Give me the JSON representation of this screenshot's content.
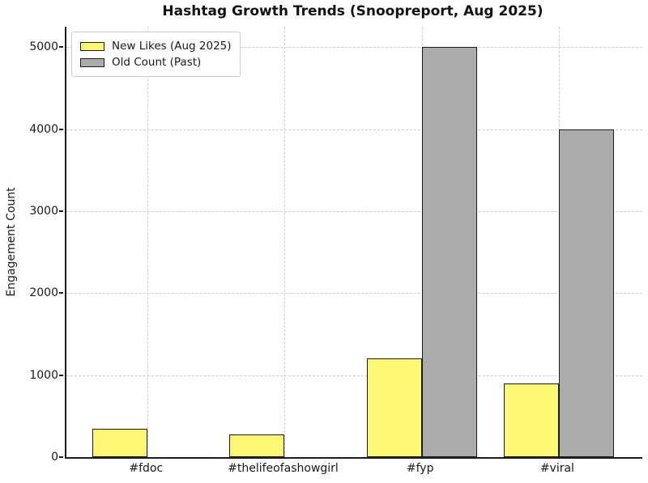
{
  "chart_data": {
    "type": "bar",
    "title": "Hashtag Growth Trends (Snoopreport, Aug 2025)",
    "ylabel": "Engagement Count",
    "xlabel": "",
    "categories": [
      "#fdoc",
      "#thelifeofashowgirl",
      "#fyp",
      "#viral"
    ],
    "series": [
      {
        "name": "New Likes (Aug 2025)",
        "color": "#FDF776",
        "values": [
          350,
          280,
          1200,
          900
        ]
      },
      {
        "name": "Old Count (Past)",
        "color": "#ACACAC",
        "values": [
          0,
          0,
          5000,
          4000
        ]
      }
    ],
    "yticks": [
      0,
      1000,
      2000,
      3000,
      4000,
      5000
    ],
    "ylim": [
      0,
      5250
    ],
    "grid": true,
    "grid_style": "dashed",
    "legend_position": "upper left",
    "colors": {
      "bar_edge": "#1c1c1c",
      "grid": "#cdcdcd",
      "text": "#1a1a1a",
      "background": "#ffffff"
    }
  }
}
